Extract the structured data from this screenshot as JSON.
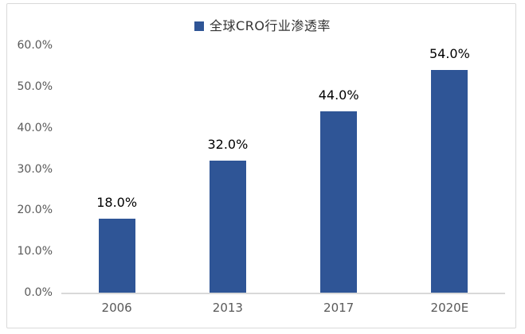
{
  "chart_data": {
    "type": "bar",
    "title": "",
    "legend": "全球CRO行业渗透率",
    "legend_position": "top-center",
    "categories": [
      "2006",
      "2013",
      "2017",
      "2020E"
    ],
    "values": [
      18.0,
      32.0,
      44.0,
      54.0
    ],
    "data_labels": [
      "18.0%",
      "32.0%",
      "44.0%",
      "54.0%"
    ],
    "xlabel": "",
    "ylabel": "",
    "y_axis": {
      "min": 0,
      "max": 60,
      "tick_values": [
        0,
        10,
        20,
        30,
        40,
        50,
        60
      ],
      "tick_labels": [
        "0.0%",
        "10.0%",
        "20.0%",
        "30.0%",
        "40.0%",
        "50.0%",
        "60.0%"
      ]
    },
    "grid": false,
    "colors": {
      "bar": "#2f5596",
      "axis_line": "#d9d9d9",
      "tick_label": "#595959",
      "data_label": "#000000",
      "legend_text": "#333333",
      "border": "#d9d9d9",
      "background": "#ffffff"
    }
  }
}
